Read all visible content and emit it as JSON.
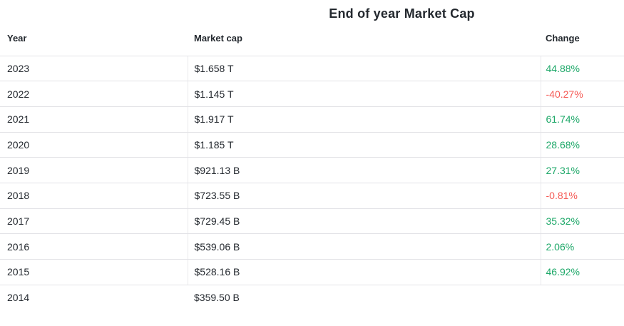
{
  "page": {
    "title": "End of year Market Cap"
  },
  "table": {
    "columns": [
      {
        "label": "Year"
      },
      {
        "label": "Market cap"
      },
      {
        "label": "Change"
      }
    ],
    "rows": [
      {
        "year": "2023",
        "market_cap": "$1.658 T",
        "change": "44.88%",
        "direction": "up"
      },
      {
        "year": "2022",
        "market_cap": "$1.145 T",
        "change": "-40.27%",
        "direction": "down"
      },
      {
        "year": "2021",
        "market_cap": "$1.917 T",
        "change": "61.74%",
        "direction": "up"
      },
      {
        "year": "2020",
        "market_cap": "$1.185 T",
        "change": "28.68%",
        "direction": "up"
      },
      {
        "year": "2019",
        "market_cap": "$921.13 B",
        "change": "27.31%",
        "direction": "up"
      },
      {
        "year": "2018",
        "market_cap": "$723.55 B",
        "change": "-0.81%",
        "direction": "down"
      },
      {
        "year": "2017",
        "market_cap": "$729.45 B",
        "change": "35.32%",
        "direction": "up"
      },
      {
        "year": "2016",
        "market_cap": "$539.06 B",
        "change": "2.06%",
        "direction": "up"
      },
      {
        "year": "2015",
        "market_cap": "$528.16 B",
        "change": "46.92%",
        "direction": "up"
      },
      {
        "year": "2014",
        "market_cap": "$359.50 B",
        "change": "",
        "direction": "none"
      }
    ]
  },
  "colors": {
    "text": "#24292f",
    "positive": "#1ea869",
    "negative": "#f55a55",
    "border": "#e2e2e6",
    "border_v": "#e9e9ec"
  }
}
